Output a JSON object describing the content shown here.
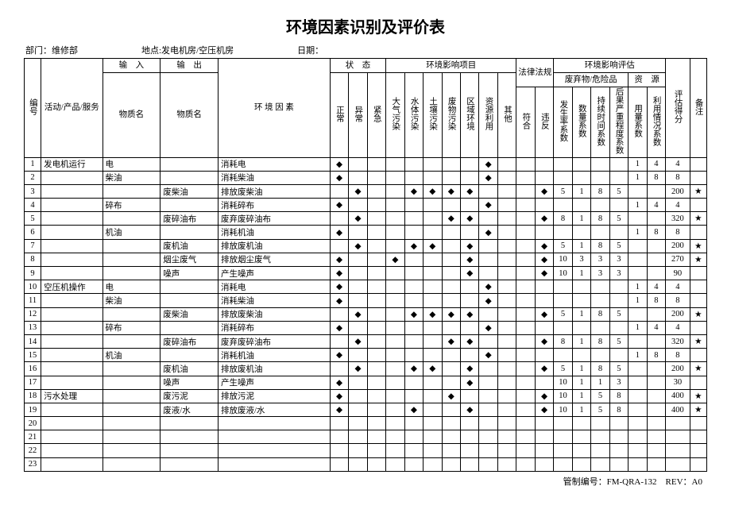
{
  "title": "环境因素识别及评价表",
  "meta": {
    "dept_label": "部门：维修部",
    "loc_label": "地点:发电机房/空压机房",
    "date_label": "日期："
  },
  "headers": {
    "no": "编号",
    "activity": "活动/产品/服务",
    "input": "输　入",
    "output": "输　出",
    "mat_name_in": "物质名",
    "mat_name_out": "物质名",
    "factor": "环 境 因 素",
    "state": "状　态",
    "state_cols": [
      "正常",
      "异常",
      "紧急"
    ],
    "impact": "环境影响项目",
    "impact_cols": [
      "大气污染",
      "水体污染",
      "土壤污染",
      "废物污染",
      "区域环境",
      "资源利用",
      "其他"
    ],
    "law": "法律法规",
    "law_cols": [
      "符合",
      "违反"
    ],
    "eval": "环境影响评估",
    "eval_g1": "废弃物/危险品",
    "eval_g2": "资　源",
    "eval_cols": [
      "发生率系数",
      "数量系数",
      "持续时间系数",
      "后果严重程度系数",
      "用量系数",
      "利用情况系数"
    ],
    "score": "评估得分",
    "remark": "备注"
  },
  "rows": [
    {
      "no": "1",
      "act": "发电机运行",
      "in": "电",
      "out": "",
      "factor": "消耗电",
      "s": [
        "◆",
        "",
        ""
      ],
      "imp": [
        "",
        "",
        "",
        "",
        "",
        "◆",
        ""
      ],
      "law": [
        "",
        ""
      ],
      "ev": [
        "",
        "",
        "",
        "",
        "1",
        "4"
      ],
      "sc": "4",
      "rm": ""
    },
    {
      "no": "2",
      "act": "",
      "in": "柴油",
      "out": "",
      "factor": "消耗柴油",
      "s": [
        "◆",
        "",
        ""
      ],
      "imp": [
        "",
        "",
        "",
        "",
        "",
        "◆",
        ""
      ],
      "law": [
        "",
        ""
      ],
      "ev": [
        "",
        "",
        "",
        "",
        "1",
        "8"
      ],
      "sc": "8",
      "rm": ""
    },
    {
      "no": "3",
      "act": "",
      "in": "",
      "out": "废柴油",
      "factor": "排放废柴油",
      "s": [
        "",
        "◆",
        ""
      ],
      "imp": [
        "",
        "◆",
        "◆",
        "◆",
        "◆",
        "",
        ""
      ],
      "law": [
        "",
        "◆"
      ],
      "ev": [
        "5",
        "1",
        "8",
        "5",
        "",
        ""
      ],
      "sc": "200",
      "rm": "★"
    },
    {
      "no": "4",
      "act": "",
      "in": "碎布",
      "out": "",
      "factor": "消耗碎布",
      "s": [
        "◆",
        "",
        ""
      ],
      "imp": [
        "",
        "",
        "",
        "",
        "",
        "◆",
        ""
      ],
      "law": [
        "",
        ""
      ],
      "ev": [
        "",
        "",
        "",
        "",
        "1",
        "4"
      ],
      "sc": "4",
      "rm": ""
    },
    {
      "no": "5",
      "act": "",
      "in": "",
      "out": "废碎油布",
      "factor": "废弃废碎油布",
      "s": [
        "",
        "◆",
        ""
      ],
      "imp": [
        "",
        "",
        "",
        "◆",
        "◆",
        "",
        ""
      ],
      "law": [
        "",
        "◆"
      ],
      "ev": [
        "8",
        "1",
        "8",
        "5",
        "",
        ""
      ],
      "sc": "320",
      "rm": "★"
    },
    {
      "no": "6",
      "act": "",
      "in": "机油",
      "out": "",
      "factor": "消耗机油",
      "s": [
        "◆",
        "",
        ""
      ],
      "imp": [
        "",
        "",
        "",
        "",
        "",
        "◆",
        ""
      ],
      "law": [
        "",
        ""
      ],
      "ev": [
        "",
        "",
        "",
        "",
        "1",
        "8"
      ],
      "sc": "8",
      "rm": ""
    },
    {
      "no": "7",
      "act": "",
      "in": "",
      "out": "废机油",
      "factor": "排放废机油",
      "s": [
        "",
        "◆",
        ""
      ],
      "imp": [
        "",
        "◆",
        "◆",
        "",
        "◆",
        "",
        ""
      ],
      "law": [
        "",
        "◆"
      ],
      "ev": [
        "5",
        "1",
        "8",
        "5",
        "",
        ""
      ],
      "sc": "200",
      "rm": "★"
    },
    {
      "no": "8",
      "act": "",
      "in": "",
      "out": "烟尘废气",
      "factor": "排放烟尘废气",
      "s": [
        "◆",
        "",
        ""
      ],
      "imp": [
        "◆",
        "",
        "",
        "",
        "◆",
        "",
        ""
      ],
      "law": [
        "",
        "◆"
      ],
      "ev": [
        "10",
        "3",
        "3",
        "3",
        "",
        ""
      ],
      "sc": "270",
      "rm": "★"
    },
    {
      "no": "9",
      "act": "",
      "in": "",
      "out": "噪声",
      "factor": "产生噪声",
      "s": [
        "◆",
        "",
        ""
      ],
      "imp": [
        "",
        "",
        "",
        "",
        "◆",
        "",
        ""
      ],
      "law": [
        "",
        "◆"
      ],
      "ev": [
        "10",
        "1",
        "3",
        "3",
        "",
        ""
      ],
      "sc": "90",
      "rm": ""
    },
    {
      "no": "10",
      "act": "空压机操作",
      "in": "电",
      "out": "",
      "factor": "消耗电",
      "s": [
        "◆",
        "",
        ""
      ],
      "imp": [
        "",
        "",
        "",
        "",
        "",
        "◆",
        ""
      ],
      "law": [
        "",
        ""
      ],
      "ev": [
        "",
        "",
        "",
        "",
        "1",
        "4"
      ],
      "sc": "4",
      "rm": ""
    },
    {
      "no": "11",
      "act": "",
      "in": "柴油",
      "out": "",
      "factor": "消耗柴油",
      "s": [
        "◆",
        "",
        ""
      ],
      "imp": [
        "",
        "",
        "",
        "",
        "",
        "◆",
        ""
      ],
      "law": [
        "",
        ""
      ],
      "ev": [
        "",
        "",
        "",
        "",
        "1",
        "8"
      ],
      "sc": "8",
      "rm": ""
    },
    {
      "no": "12",
      "act": "",
      "in": "",
      "out": "废柴油",
      "factor": "排放废柴油",
      "s": [
        "",
        "◆",
        ""
      ],
      "imp": [
        "",
        "◆",
        "◆",
        "◆",
        "◆",
        "",
        ""
      ],
      "law": [
        "",
        "◆"
      ],
      "ev": [
        "5",
        "1",
        "8",
        "5",
        "",
        ""
      ],
      "sc": "200",
      "rm": "★"
    },
    {
      "no": "13",
      "act": "",
      "in": "碎布",
      "out": "",
      "factor": "消耗碎布",
      "s": [
        "◆",
        "",
        ""
      ],
      "imp": [
        "",
        "",
        "",
        "",
        "",
        "◆",
        ""
      ],
      "law": [
        "",
        ""
      ],
      "ev": [
        "",
        "",
        "",
        "",
        "1",
        "4"
      ],
      "sc": "4",
      "rm": ""
    },
    {
      "no": "14",
      "act": "",
      "in": "",
      "out": "废碎油布",
      "factor": "废弃废碎油布",
      "s": [
        "",
        "◆",
        ""
      ],
      "imp": [
        "",
        "",
        "",
        "◆",
        "◆",
        "",
        ""
      ],
      "law": [
        "",
        "◆"
      ],
      "ev": [
        "8",
        "1",
        "8",
        "5",
        "",
        ""
      ],
      "sc": "320",
      "rm": "★"
    },
    {
      "no": "15",
      "act": "",
      "in": "机油",
      "out": "",
      "factor": "消耗机油",
      "s": [
        "◆",
        "",
        ""
      ],
      "imp": [
        "",
        "",
        "",
        "",
        "",
        "◆",
        ""
      ],
      "law": [
        "",
        ""
      ],
      "ev": [
        "",
        "",
        "",
        "",
        "1",
        "8"
      ],
      "sc": "8",
      "rm": ""
    },
    {
      "no": "16",
      "act": "",
      "in": "",
      "out": "废机油",
      "factor": "排放废机油",
      "s": [
        "",
        "◆",
        ""
      ],
      "imp": [
        "",
        "◆",
        "◆",
        "",
        "◆",
        "",
        ""
      ],
      "law": [
        "",
        "◆"
      ],
      "ev": [
        "5",
        "1",
        "8",
        "5",
        "",
        ""
      ],
      "sc": "200",
      "rm": "★"
    },
    {
      "no": "17",
      "act": "",
      "in": "",
      "out": "噪声",
      "factor": "产生噪声",
      "s": [
        "◆",
        "",
        ""
      ],
      "imp": [
        "",
        "",
        "",
        "",
        "◆",
        "",
        ""
      ],
      "law": [
        "",
        ""
      ],
      "ev": [
        "10",
        "1",
        "1",
        "3",
        "",
        ""
      ],
      "sc": "30",
      "rm": ""
    },
    {
      "no": "18",
      "act": "污水处理",
      "in": "",
      "out": "废污泥",
      "factor": "排放污泥",
      "s": [
        "◆",
        "",
        ""
      ],
      "imp": [
        "",
        "",
        "",
        "◆",
        "",
        "",
        ""
      ],
      "law": [
        "",
        "◆"
      ],
      "ev": [
        "10",
        "1",
        "5",
        "8",
        "",
        ""
      ],
      "sc": "400",
      "rm": "★"
    },
    {
      "no": "19",
      "act": "",
      "in": "",
      "out": "废液/水",
      "factor": "排放废液/水",
      "s": [
        "◆",
        "",
        ""
      ],
      "imp": [
        "",
        "◆",
        "",
        "",
        "◆",
        "",
        ""
      ],
      "law": [
        "",
        "◆"
      ],
      "ev": [
        "10",
        "1",
        "5",
        "8",
        "",
        ""
      ],
      "sc": "400",
      "rm": "★"
    },
    {
      "no": "20",
      "act": "",
      "in": "",
      "out": "",
      "factor": "",
      "s": [
        "",
        "",
        ""
      ],
      "imp": [
        "",
        "",
        "",
        "",
        "",
        "",
        ""
      ],
      "law": [
        "",
        ""
      ],
      "ev": [
        "",
        "",
        "",
        "",
        "",
        ""
      ],
      "sc": "",
      "rm": ""
    },
    {
      "no": "21",
      "act": "",
      "in": "",
      "out": "",
      "factor": "",
      "s": [
        "",
        "",
        ""
      ],
      "imp": [
        "",
        "",
        "",
        "",
        "",
        "",
        ""
      ],
      "law": [
        "",
        ""
      ],
      "ev": [
        "",
        "",
        "",
        "",
        "",
        ""
      ],
      "sc": "",
      "rm": ""
    },
    {
      "no": "22",
      "act": "",
      "in": "",
      "out": "",
      "factor": "",
      "s": [
        "",
        "",
        ""
      ],
      "imp": [
        "",
        "",
        "",
        "",
        "",
        "",
        ""
      ],
      "law": [
        "",
        ""
      ],
      "ev": [
        "",
        "",
        "",
        "",
        "",
        ""
      ],
      "sc": "",
      "rm": ""
    },
    {
      "no": "23",
      "act": "",
      "in": "",
      "out": "",
      "factor": "",
      "s": [
        "",
        "",
        ""
      ],
      "imp": [
        "",
        "",
        "",
        "",
        "",
        "",
        ""
      ],
      "law": [
        "",
        ""
      ],
      "ev": [
        "",
        "",
        "",
        "",
        "",
        ""
      ],
      "sc": "",
      "rm": ""
    }
  ],
  "footer": "管制编号：FM-QRA-132　REV：A0"
}
